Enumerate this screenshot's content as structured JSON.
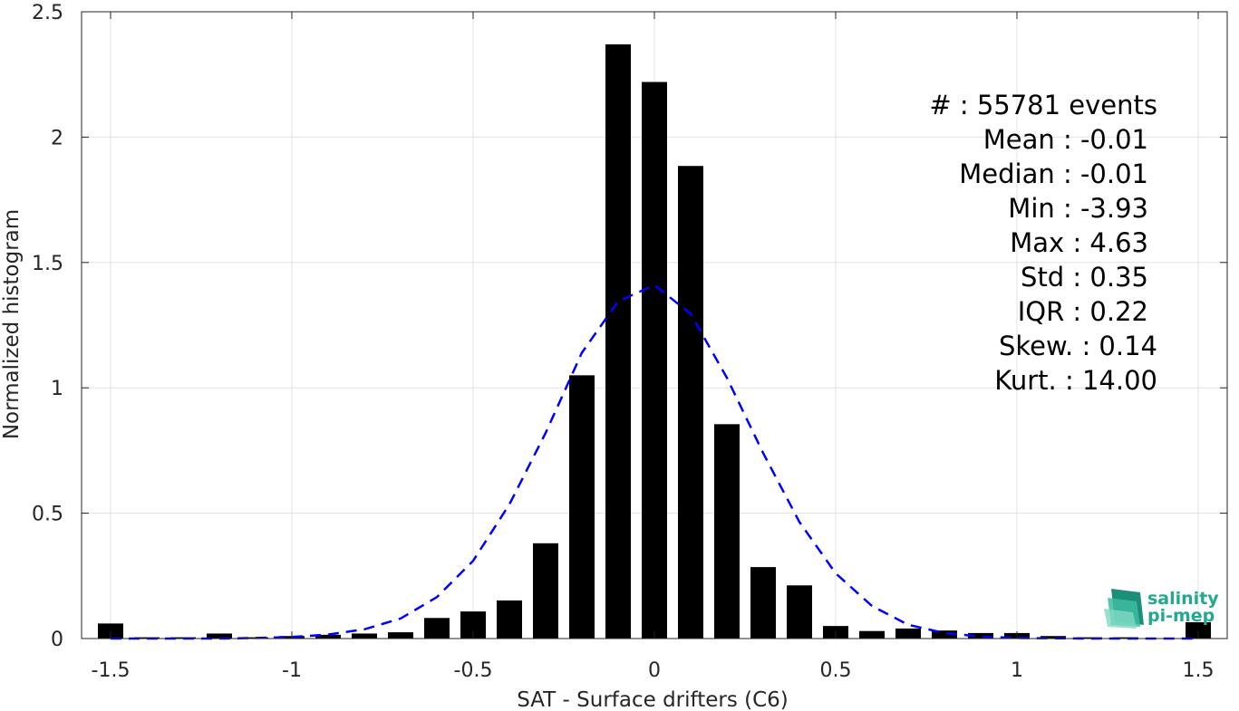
{
  "chart_data": {
    "type": "bar",
    "xlabel": "SAT - Surface drifters (C6)",
    "ylabel": "Normalized histogram",
    "xlim": [
      -1.58,
      1.58
    ],
    "ylim": [
      0,
      2.5
    ],
    "x_ticks": [
      -1.5,
      -1,
      -0.5,
      0,
      0.5,
      1,
      1.5
    ],
    "x_tick_labels": [
      "-1.5",
      "-1",
      "-0.5",
      "0",
      "0.5",
      "1",
      "1.5"
    ],
    "y_ticks": [
      0,
      0.5,
      1,
      1.5,
      2,
      2.5
    ],
    "y_tick_labels": [
      "0",
      "0.5",
      "1",
      "1.5",
      "2",
      "2.5"
    ],
    "grid": true,
    "bar_color": "#000000",
    "bar_width": 0.07,
    "x": [
      -1.5,
      -1.4,
      -1.3,
      -1.2,
      -1.1,
      -1.0,
      -0.9,
      -0.8,
      -0.7,
      -0.6,
      -0.5,
      -0.4,
      -0.3,
      -0.2,
      -0.1,
      0.0,
      0.1,
      0.2,
      0.3,
      0.4,
      0.5,
      0.6,
      0.7,
      0.8,
      0.9,
      1.0,
      1.1,
      1.2,
      1.3,
      1.4,
      1.5
    ],
    "values": [
      0.06,
      0.005,
      0.005,
      0.02,
      0.005,
      0.01,
      0.015,
      0.02,
      0.025,
      0.082,
      0.108,
      0.152,
      0.38,
      1.05,
      2.37,
      2.22,
      1.885,
      0.855,
      0.285,
      0.212,
      0.05,
      0.03,
      0.04,
      0.032,
      0.022,
      0.022,
      0.01,
      0.005,
      0.005,
      0.0,
      0.065
    ],
    "gaussian_fit": {
      "color": "#0000ff",
      "style": "dashed",
      "x": [
        -1.5,
        -1.4,
        -1.3,
        -1.2,
        -1.1,
        -1.0,
        -0.9,
        -0.8,
        -0.7,
        -0.6,
        -0.5,
        -0.4,
        -0.3,
        -0.2,
        -0.1,
        0.0,
        0.1,
        0.2,
        0.3,
        0.4,
        0.5,
        0.6,
        0.7,
        0.8,
        0.9,
        1.0,
        1.1,
        1.2,
        1.3,
        1.4,
        1.5
      ],
      "y": [
        0.0,
        0.0,
        0.0,
        0.0,
        0.002,
        0.006,
        0.016,
        0.037,
        0.08,
        0.165,
        0.31,
        0.535,
        0.82,
        1.14,
        1.345,
        1.41,
        1.295,
        1.04,
        0.74,
        0.465,
        0.26,
        0.13,
        0.055,
        0.022,
        0.008,
        0.002,
        0.001,
        0.0,
        0.0,
        0.0,
        0.0
      ]
    }
  },
  "stats": [
    "#  : 55781 events",
    "Mean : -0.01",
    "Median : -0.01",
    "Min : -3.93",
    "Max : 4.63",
    "Std : 0.35",
    "IQR : 0.22",
    "Skew. : 0.14",
    "Kurt. : 14.00"
  ],
  "logo": {
    "line1": "salinity",
    "line2": "pi-mep",
    "color": "#23a98e"
  }
}
